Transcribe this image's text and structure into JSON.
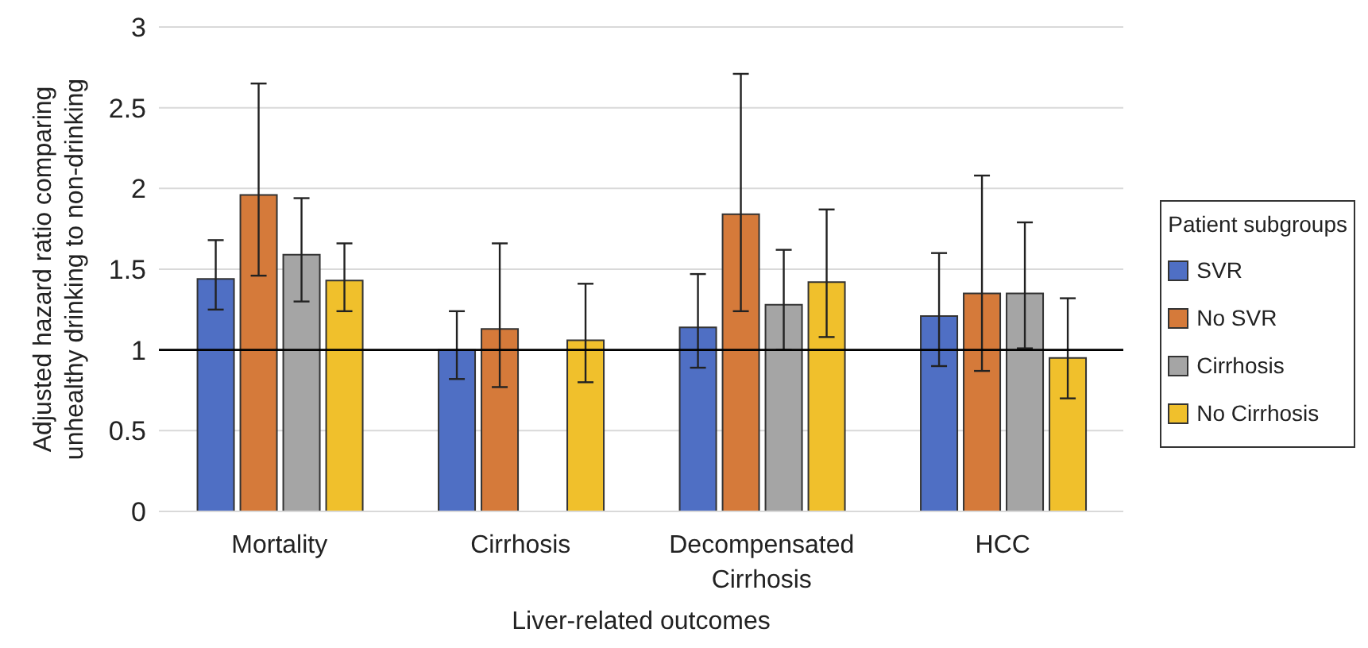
{
  "chart_data": {
    "type": "bar",
    "xlabel": "Liver-related outcomes",
    "ylabel": "Adjusted hazard ratio comparing unhealthy drinking to non-drinking",
    "legend_title": "Patient subgroups",
    "categories": [
      "Mortality",
      "Cirrhosis",
      "Decompensated Cirrhosis",
      "HCC"
    ],
    "series": [
      {
        "name": "SVR",
        "color": "#4f6fc4",
        "values": [
          1.44,
          1.0,
          1.14,
          1.21
        ],
        "errors": [
          [
            1.25,
            1.68
          ],
          [
            0.82,
            1.24
          ],
          [
            0.89,
            1.47
          ],
          [
            0.9,
            1.6
          ]
        ]
      },
      {
        "name": "No SVR",
        "color": "#d57a3a",
        "values": [
          1.96,
          1.13,
          1.84,
          1.35
        ],
        "errors": [
          [
            1.46,
            2.65
          ],
          [
            0.77,
            1.66
          ],
          [
            1.24,
            2.71
          ],
          [
            0.87,
            2.08
          ]
        ]
      },
      {
        "name": "Cirrhosis",
        "color": "#a5a5a5",
        "values": [
          1.59,
          null,
          1.28,
          1.35
        ],
        "errors": [
          [
            1.3,
            1.94
          ],
          null,
          [
            1.0,
            1.62
          ],
          [
            1.01,
            1.79
          ]
        ]
      },
      {
        "name": "No Cirrhosis",
        "color": "#f0c02c",
        "values": [
          1.43,
          1.06,
          1.42,
          0.95
        ],
        "errors": [
          [
            1.24,
            1.66
          ],
          [
            0.8,
            1.41
          ],
          [
            1.08,
            1.87
          ],
          [
            0.7,
            1.32
          ]
        ]
      }
    ],
    "ylim": [
      0,
      3
    ],
    "yticks": [
      0,
      0.5,
      1,
      1.5,
      2,
      2.5,
      3
    ],
    "grid": "y",
    "legend": "right",
    "ref_lines": [
      {
        "axis": "y",
        "value": 1,
        "color": "#000000"
      }
    ]
  }
}
